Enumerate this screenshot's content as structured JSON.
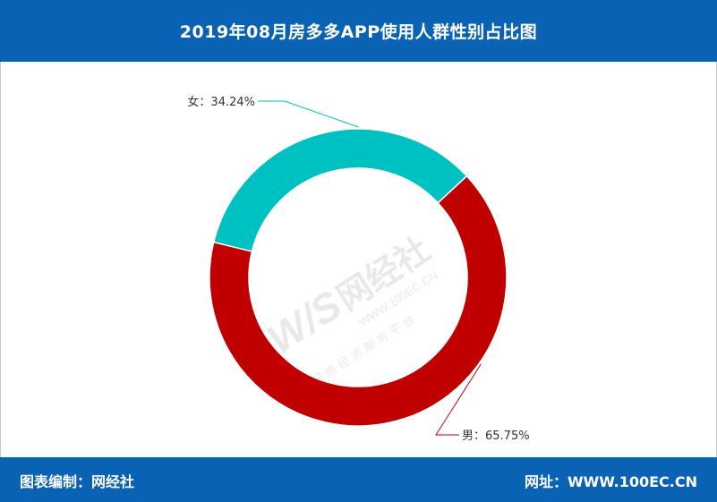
{
  "header": {
    "title": "2019年08月房多多APP使用人群性别占比图"
  },
  "footer": {
    "left": "图表编制：网经社",
    "right": "网址：WWW.100EC.CN"
  },
  "watermark": {
    "logo": "W/S网经社",
    "url": "WWW.100EC.CN",
    "tagline": "网 络 经 济 服 务 平 台"
  },
  "chart_data": {
    "type": "pie",
    "categories": [
      "女",
      "男"
    ],
    "values": [
      34.24,
      65.75
    ],
    "labels": [
      "女：34.24%",
      "男：65.75%"
    ],
    "colors": [
      "#00c1c1",
      "#c00000"
    ],
    "title": "",
    "donut": true
  }
}
